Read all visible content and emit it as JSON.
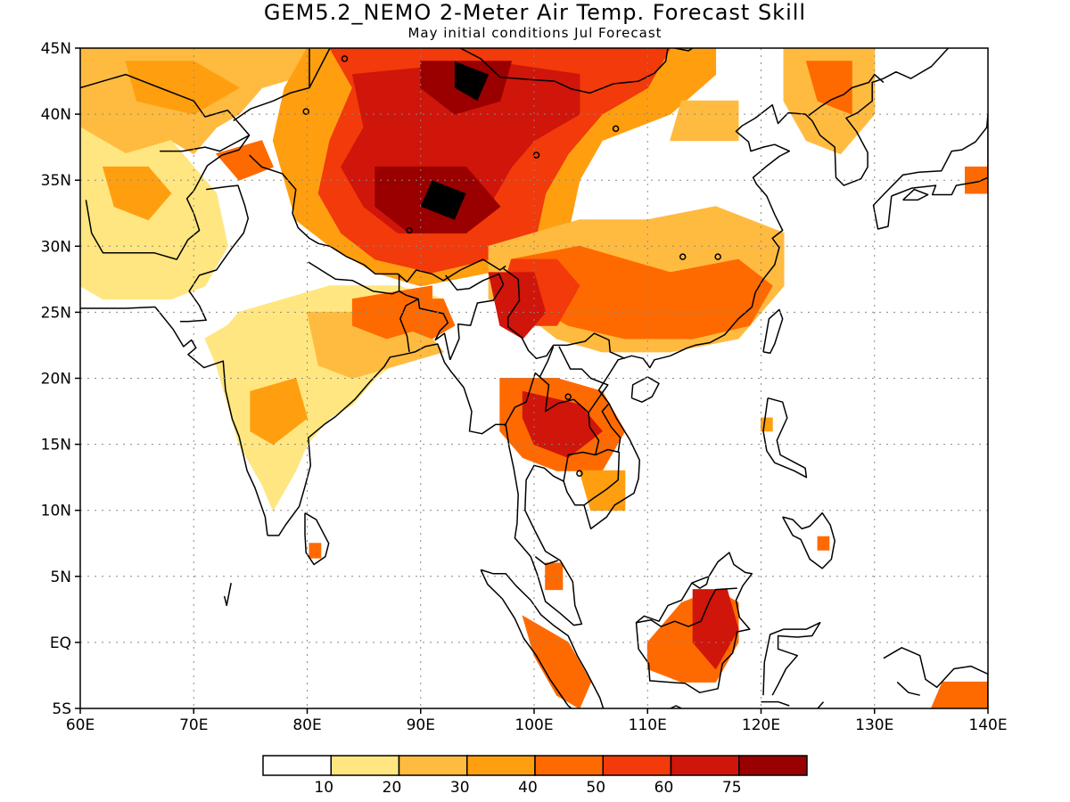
{
  "title": "GEM5.2_NEMO 2-Meter Air Temp. Forecast Skill",
  "subtitle": "May initial conditions  Jul Forecast",
  "chart_data": {
    "type": "heatmap",
    "title": "GEM5.2_NEMO 2-Meter Air Temp. Forecast Skill",
    "subtitle": "May initial conditions  Jul Forecast",
    "xlim": [
      60,
      140
    ],
    "ylim": [
      -5,
      45
    ],
    "grid": true,
    "x_ticks": [
      {
        "value": 60,
        "label": "60E"
      },
      {
        "value": 70,
        "label": "70E"
      },
      {
        "value": 80,
        "label": "80E"
      },
      {
        "value": 90,
        "label": "90E"
      },
      {
        "value": 100,
        "label": "100E"
      },
      {
        "value": 110,
        "label": "110E"
      },
      {
        "value": 120,
        "label": "120E"
      },
      {
        "value": 130,
        "label": "130E"
      },
      {
        "value": 140,
        "label": "140E"
      }
    ],
    "y_ticks": [
      {
        "value": -5,
        "label": "5S"
      },
      {
        "value": 0,
        "label": "EQ"
      },
      {
        "value": 5,
        "label": "5N"
      },
      {
        "value": 10,
        "label": "10N"
      },
      {
        "value": 15,
        "label": "15N"
      },
      {
        "value": 20,
        "label": "20N"
      },
      {
        "value": 25,
        "label": "25N"
      },
      {
        "value": 30,
        "label": "30N"
      },
      {
        "value": 35,
        "label": "35N"
      },
      {
        "value": 40,
        "label": "40N"
      },
      {
        "value": 45,
        "label": "45N"
      }
    ],
    "legend": {
      "placement": "bottom",
      "colors": [
        "#ffffff",
        "#ffe680",
        "#ffbb40",
        "#ff9f10",
        "#ff6a00",
        "#f23a0a",
        "#d0150a",
        "#9a0000"
      ],
      "labels": [
        "10",
        "20",
        "30",
        "40",
        "50",
        "60",
        "75"
      ]
    },
    "regions": [
      {
        "level": 2,
        "points": [
          [
            60,
            45
          ],
          [
            80,
            45
          ],
          [
            80,
            43
          ],
          [
            76,
            42
          ],
          [
            74,
            40
          ],
          [
            72,
            39
          ],
          [
            70,
            37
          ],
          [
            68,
            38
          ],
          [
            64,
            37
          ],
          [
            60,
            39
          ]
        ]
      },
      {
        "level": 1,
        "points": [
          [
            60,
            39
          ],
          [
            64,
            37
          ],
          [
            68,
            38
          ],
          [
            70,
            36
          ],
          [
            72,
            34
          ],
          [
            73,
            30
          ],
          [
            71,
            27
          ],
          [
            68,
            26
          ],
          [
            62,
            26
          ],
          [
            60,
            27
          ]
        ]
      },
      {
        "level": 3,
        "points": [
          [
            62,
            36
          ],
          [
            66,
            36
          ],
          [
            68,
            34
          ],
          [
            66,
            32
          ],
          [
            63,
            33
          ]
        ]
      },
      {
        "level": 3,
        "points": [
          [
            64,
            44
          ],
          [
            70,
            44
          ],
          [
            74,
            42
          ],
          [
            70,
            40
          ],
          [
            65,
            41
          ]
        ]
      },
      {
        "level": 4,
        "points": [
          [
            72,
            37
          ],
          [
            76,
            38
          ],
          [
            77,
            36
          ],
          [
            74,
            35
          ]
        ]
      },
      {
        "level": 1,
        "points": [
          [
            74,
            25
          ],
          [
            78,
            26
          ],
          [
            82,
            27
          ],
          [
            88,
            27
          ],
          [
            92,
            26
          ],
          [
            92,
            24
          ],
          [
            89,
            22
          ],
          [
            86,
            20
          ],
          [
            84,
            18
          ],
          [
            82,
            17
          ],
          [
            80,
            15
          ],
          [
            79,
            13
          ],
          [
            77,
            10
          ],
          [
            76,
            12
          ],
          [
            74,
            15
          ],
          [
            73,
            18
          ],
          [
            72,
            21
          ],
          [
            71,
            23
          ],
          [
            73,
            24
          ]
        ]
      },
      {
        "level": 2,
        "points": [
          [
            80,
            25
          ],
          [
            86,
            25
          ],
          [
            90,
            24
          ],
          [
            92,
            22
          ],
          [
            88,
            21
          ],
          [
            84,
            20
          ],
          [
            81,
            21
          ]
        ]
      },
      {
        "level": 4,
        "points": [
          [
            84,
            26
          ],
          [
            91,
            27
          ],
          [
            91,
            24
          ],
          [
            87,
            23
          ],
          [
            84,
            24
          ]
        ]
      },
      {
        "level": 3,
        "points": [
          [
            75,
            19
          ],
          [
            79,
            20
          ],
          [
            80,
            17
          ],
          [
            77,
            15
          ],
          [
            75,
            16
          ]
        ]
      },
      {
        "level": 4,
        "points": [
          [
            80.2,
            7.5
          ],
          [
            81.2,
            7.5
          ],
          [
            81.2,
            6.4
          ],
          [
            80.2,
            6.4
          ]
        ]
      },
      {
        "level": 3,
        "points": [
          [
            80,
            45
          ],
          [
            116,
            45
          ],
          [
            116,
            43
          ],
          [
            112,
            40
          ],
          [
            106,
            38
          ],
          [
            104,
            35
          ],
          [
            103,
            31
          ],
          [
            100,
            28
          ],
          [
            96,
            28
          ],
          [
            90,
            27
          ],
          [
            86,
            28
          ],
          [
            82,
            30
          ],
          [
            79,
            32
          ],
          [
            78,
            35
          ],
          [
            77,
            38
          ],
          [
            78,
            42
          ]
        ]
      },
      {
        "level": 5,
        "points": [
          [
            82,
            45
          ],
          [
            112,
            45
          ],
          [
            110,
            42
          ],
          [
            106,
            40
          ],
          [
            103,
            37
          ],
          [
            101,
            34
          ],
          [
            100,
            30
          ],
          [
            96,
            29
          ],
          [
            91,
            28
          ],
          [
            86,
            29
          ],
          [
            83,
            31
          ],
          [
            81,
            34
          ],
          [
            82,
            38
          ],
          [
            84,
            42
          ]
        ]
      },
      {
        "level": 6,
        "points": [
          [
            84,
            43
          ],
          [
            96,
            44
          ],
          [
            104,
            43
          ],
          [
            104,
            40
          ],
          [
            100,
            38
          ],
          [
            98,
            36
          ],
          [
            96,
            33
          ],
          [
            92,
            31
          ],
          [
            88,
            31
          ],
          [
            85,
            33
          ],
          [
            83,
            36
          ],
          [
            85,
            39
          ]
        ]
      },
      {
        "level": 7,
        "points": [
          [
            86,
            36
          ],
          [
            94,
            36
          ],
          [
            97,
            33
          ],
          [
            94,
            31
          ],
          [
            89,
            31
          ],
          [
            86,
            33
          ]
        ]
      },
      {
        "level": 7,
        "points": [
          [
            90,
            44
          ],
          [
            98,
            44
          ],
          [
            97,
            41
          ],
          [
            93,
            40
          ],
          [
            90,
            42
          ]
        ]
      },
      {
        "level": 8,
        "points": [
          [
            91,
            35
          ],
          [
            94,
            34
          ],
          [
            93,
            32
          ],
          [
            90,
            33
          ]
        ]
      },
      {
        "level": 8,
        "points": [
          [
            93,
            44
          ],
          [
            96,
            43
          ],
          [
            95,
            41
          ],
          [
            93,
            42
          ]
        ]
      },
      {
        "level": 2,
        "points": [
          [
            96,
            30
          ],
          [
            104,
            32
          ],
          [
            110,
            32
          ],
          [
            116,
            33
          ],
          [
            122,
            31
          ],
          [
            122,
            27
          ],
          [
            118,
            23
          ],
          [
            112,
            22
          ],
          [
            106,
            22
          ],
          [
            102,
            23
          ],
          [
            99,
            25
          ],
          [
            96,
            26
          ]
        ]
      },
      {
        "level": 4,
        "points": [
          [
            98,
            29
          ],
          [
            104,
            30
          ],
          [
            108,
            29
          ],
          [
            112,
            28
          ],
          [
            118,
            29
          ],
          [
            121,
            27
          ],
          [
            119,
            24
          ],
          [
            114,
            23
          ],
          [
            108,
            23
          ],
          [
            103,
            24
          ],
          [
            99,
            26
          ]
        ]
      },
      {
        "level": 5,
        "points": [
          [
            98,
            29
          ],
          [
            102,
            29
          ],
          [
            104,
            27
          ],
          [
            102,
            24
          ],
          [
            99,
            24
          ],
          [
            97,
            26
          ]
        ]
      },
      {
        "level": 6,
        "points": [
          [
            96,
            28
          ],
          [
            100,
            28
          ],
          [
            101,
            25
          ],
          [
            99,
            23
          ],
          [
            97,
            24
          ]
        ]
      },
      {
        "level": 4,
        "points": [
          [
            88,
            26
          ],
          [
            92,
            26
          ],
          [
            93,
            24
          ],
          [
            91,
            23
          ],
          [
            88,
            24
          ]
        ]
      },
      {
        "level": 4,
        "points": [
          [
            97,
            20
          ],
          [
            102,
            20
          ],
          [
            106,
            19
          ],
          [
            108,
            16
          ],
          [
            106,
            13
          ],
          [
            102,
            13
          ],
          [
            99,
            14
          ],
          [
            97,
            16
          ]
        ]
      },
      {
        "level": 6,
        "points": [
          [
            99,
            19
          ],
          [
            104,
            18
          ],
          [
            106,
            16
          ],
          [
            103,
            14
          ],
          [
            100,
            15
          ],
          [
            99,
            17
          ]
        ]
      },
      {
        "level": 3,
        "points": [
          [
            104,
            13
          ],
          [
            108,
            13
          ],
          [
            108,
            10
          ],
          [
            105,
            10
          ]
        ]
      },
      {
        "level": 4,
        "points": [
          [
            110,
            0
          ],
          [
            113,
            3
          ],
          [
            116,
            4
          ],
          [
            118,
            3
          ],
          [
            118,
            0
          ],
          [
            116,
            -3
          ],
          [
            113,
            -3
          ],
          [
            110,
            -2
          ]
        ]
      },
      {
        "level": 6,
        "points": [
          [
            114,
            4
          ],
          [
            117,
            4
          ],
          [
            118,
            1
          ],
          [
            116,
            -2
          ],
          [
            114,
            0
          ]
        ]
      },
      {
        "level": 4,
        "points": [
          [
            99,
            2
          ],
          [
            103,
            0
          ],
          [
            105,
            -3
          ],
          [
            104,
            -5
          ],
          [
            102,
            -4
          ],
          [
            100,
            -1
          ]
        ]
      },
      {
        "level": 4,
        "points": [
          [
            101,
            6
          ],
          [
            102.5,
            6
          ],
          [
            102.5,
            4
          ],
          [
            101,
            4
          ]
        ]
      },
      {
        "level": 4,
        "points": [
          [
            135,
            -5
          ],
          [
            140,
            -5
          ],
          [
            140,
            -3
          ],
          [
            136,
            -3
          ]
        ]
      },
      {
        "level": 2,
        "points": [
          [
            112,
            38
          ],
          [
            118,
            38
          ],
          [
            118,
            41
          ],
          [
            113,
            41
          ]
        ]
      },
      {
        "level": 2,
        "points": [
          [
            122,
            45
          ],
          [
            130,
            45
          ],
          [
            130,
            40
          ],
          [
            127,
            37
          ],
          [
            124,
            38
          ],
          [
            122,
            41
          ]
        ]
      },
      {
        "level": 4,
        "points": [
          [
            124,
            44
          ],
          [
            128,
            44
          ],
          [
            128,
            40
          ],
          [
            125,
            41
          ]
        ]
      },
      {
        "level": 4,
        "points": [
          [
            138,
            36
          ],
          [
            140,
            36
          ],
          [
            140,
            34
          ],
          [
            138,
            34
          ]
        ]
      },
      {
        "level": 3,
        "points": [
          [
            120,
            17
          ],
          [
            121,
            17
          ],
          [
            121,
            16
          ],
          [
            120,
            16
          ]
        ]
      },
      {
        "level": 4,
        "points": [
          [
            125,
            8
          ],
          [
            126,
            8
          ],
          [
            126,
            7
          ],
          [
            125,
            7
          ]
        ]
      }
    ]
  }
}
